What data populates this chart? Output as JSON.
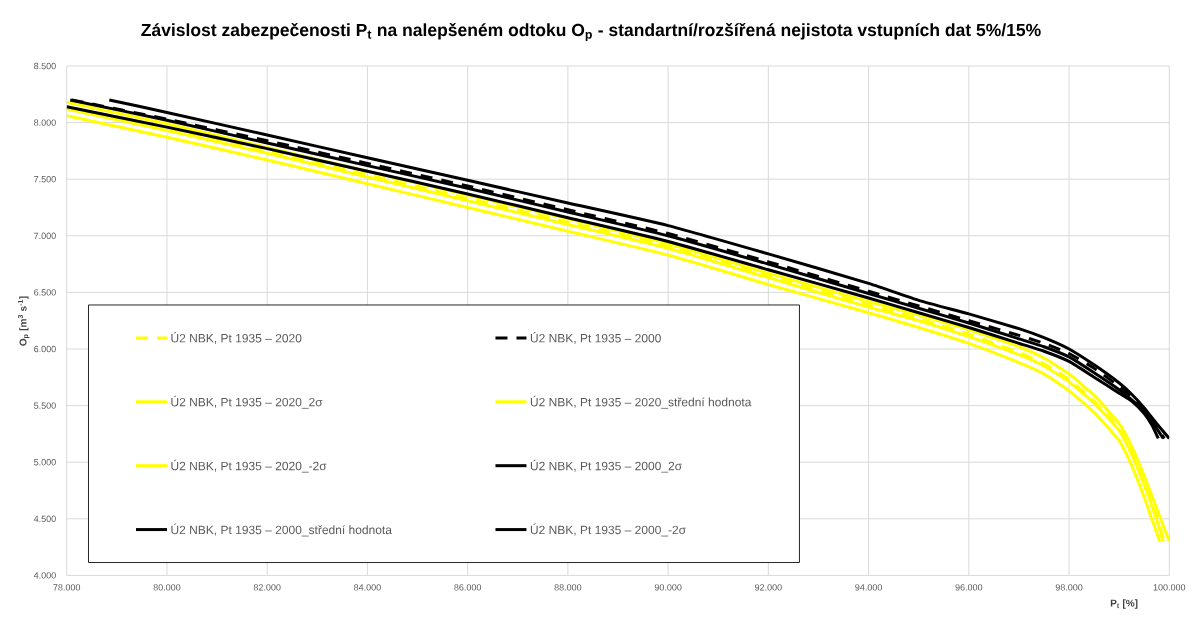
{
  "chart_data": {
    "type": "line",
    "title": "Závislost zabezpečenosti P$_{t}$ na nalepšeném odtoku O$_{p}$  - standartní/rozšířená nejistota vstupních dat 5%/15%",
    "xlabel": "P$_{t}$ [%]",
    "ylabel": "O$_{p}$ [m$^{3}$ s$^{-1}$]",
    "xlim": [
      78,
      100
    ],
    "ylim": [
      4,
      8.5
    ],
    "xticks": [
      {
        "value": 78,
        "label": "78.000"
      },
      {
        "value": 80,
        "label": "80.000"
      },
      {
        "value": 82,
        "label": "82.000"
      },
      {
        "value": 84,
        "label": "84.000"
      },
      {
        "value": 86,
        "label": "86.000"
      },
      {
        "value": 88,
        "label": "88.000"
      },
      {
        "value": 90,
        "label": "90.000"
      },
      {
        "value": 92,
        "label": "92.000"
      },
      {
        "value": 94,
        "label": "94.000"
      },
      {
        "value": 96,
        "label": "96.000"
      },
      {
        "value": 98,
        "label": "98.000"
      },
      {
        "value": 100,
        "label": "100.000"
      }
    ],
    "yticks": [
      {
        "value": 4,
        "label": "4.000"
      },
      {
        "value": 4.5,
        "label": "4.500"
      },
      {
        "value": 5,
        "label": "5.000"
      },
      {
        "value": 5.5,
        "label": "5.500"
      },
      {
        "value": 6,
        "label": "6.000"
      },
      {
        "value": 6.5,
        "label": "6.500"
      },
      {
        "value": 7,
        "label": "7.000"
      },
      {
        "value": 7.5,
        "label": "7.500"
      },
      {
        "value": 8,
        "label": "8.000"
      },
      {
        "value": 8.5,
        "label": "8.500"
      }
    ],
    "grid": true,
    "legend": "bottom left",
    "series": [
      {
        "name": "Ú2 NBK, Pt 1935 – 2020",
        "color": "#ffff00",
        "line_style": "dashed",
        "x": [
          78,
          80,
          82,
          84,
          86,
          88,
          90,
          92,
          94,
          95,
          96,
          97,
          97.5,
          98,
          98.5,
          99,
          99.25,
          99.5,
          99.75,
          99.9
        ],
        "values": [
          8.14,
          7.95,
          7.75,
          7.54,
          7.33,
          7.12,
          6.91,
          6.65,
          6.39,
          6.27,
          6.13,
          5.97,
          5.87,
          5.73,
          5.54,
          5.3,
          5.09,
          4.82,
          4.51,
          4.3
        ]
      },
      {
        "name": "Ú2 NBK, Pt 1935 – 2000",
        "color": "#000000",
        "line_style": "dashed",
        "x": [
          78.1,
          80,
          82,
          84,
          86,
          88,
          90,
          92,
          94,
          95,
          96,
          97,
          97.5,
          98,
          98.5,
          99,
          99.25,
          99.5,
          99.7,
          99.9
        ],
        "values": [
          8.2,
          8.03,
          7.84,
          7.64,
          7.44,
          7.23,
          7.02,
          6.77,
          6.51,
          6.38,
          6.25,
          6.12,
          6.05,
          5.96,
          5.83,
          5.67,
          5.58,
          5.47,
          5.35,
          5.21
        ]
      },
      {
        "name": "Ú2 NBK, Pt 1935 – 2020_2σ",
        "color": "#ffff00",
        "line_style": "solid",
        "x": [
          78,
          80,
          82,
          84,
          86,
          88,
          90,
          92,
          94,
          95,
          96,
          97,
          97.5,
          98,
          98.5,
          99,
          99.25,
          99.5,
          99.75,
          100
        ],
        "values": [
          8.18,
          7.99,
          7.78,
          7.57,
          7.36,
          7.15,
          6.93,
          6.67,
          6.42,
          6.3,
          6.17,
          6.02,
          5.92,
          5.78,
          5.59,
          5.34,
          5.14,
          4.88,
          4.59,
          4.3
        ]
      },
      {
        "name": "Ú2 NBK, Pt 1935 – 2020_střední hodnota",
        "color": "#ffff00",
        "line_style": "solid",
        "x": [
          78,
          80,
          82,
          84,
          86,
          88,
          90,
          92,
          94,
          95,
          96,
          97,
          97.5,
          98,
          98.5,
          99,
          99.25,
          99.5,
          99.75,
          99.88
        ],
        "values": [
          8.12,
          7.93,
          7.73,
          7.52,
          7.31,
          7.1,
          6.89,
          6.63,
          6.37,
          6.25,
          6.11,
          5.95,
          5.85,
          5.71,
          5.52,
          5.28,
          5.07,
          4.8,
          4.49,
          4.3
        ]
      },
      {
        "name": "Ú2 NBK, Pt 1935 – 2020_-2σ",
        "color": "#ffff00",
        "line_style": "solid",
        "x": [
          78,
          80,
          82,
          84,
          86,
          88,
          90,
          92,
          94,
          95,
          96,
          97,
          97.5,
          98,
          98.5,
          99,
          99.25,
          99.5,
          99.65,
          99.81
        ],
        "values": [
          8.06,
          7.87,
          7.67,
          7.46,
          7.25,
          7.04,
          6.83,
          6.57,
          6.32,
          6.19,
          6.05,
          5.88,
          5.78,
          5.63,
          5.44,
          5.19,
          4.97,
          4.69,
          4.5,
          4.3
        ]
      },
      {
        "name": "Ú2 NBK, Pt 1935 – 2000_2σ",
        "color": "#000000",
        "line_style": "solid",
        "x": [
          78.85,
          80,
          82,
          84,
          86,
          88,
          90,
          92,
          94,
          95,
          96,
          97,
          97.5,
          98,
          98.5,
          99,
          99.25,
          99.5,
          99.75,
          100
        ],
        "values": [
          8.2,
          8.09,
          7.89,
          7.69,
          7.49,
          7.29,
          7.09,
          6.84,
          6.58,
          6.43,
          6.31,
          6.18,
          6.1,
          6.0,
          5.86,
          5.7,
          5.6,
          5.48,
          5.34,
          5.21
        ]
      },
      {
        "name": "Ú2 NBK, Pt 1935 – 2000_střední hodnota",
        "color": "#000000",
        "line_style": "solid",
        "x": [
          78.07,
          80,
          82,
          84,
          86,
          88,
          90,
          92,
          94,
          95,
          96,
          97,
          97.5,
          98,
          98.5,
          99,
          99.25,
          99.5,
          99.7,
          99.88
        ],
        "values": [
          8.2,
          8.02,
          7.82,
          7.62,
          7.42,
          7.21,
          7.0,
          6.75,
          6.49,
          6.36,
          6.23,
          6.09,
          6.02,
          5.93,
          5.79,
          5.64,
          5.55,
          5.45,
          5.33,
          5.21
        ]
      },
      {
        "name": "Ú2 NBK, Pt 1935 – 2000_-2σ",
        "color": "#000000",
        "line_style": "solid",
        "x": [
          78,
          80,
          82,
          84,
          86,
          88,
          90,
          92,
          94,
          95,
          96,
          97,
          97.5,
          98,
          98.5,
          99,
          99.25,
          99.5,
          99.65,
          99.78
        ],
        "values": [
          8.14,
          7.96,
          7.77,
          7.57,
          7.37,
          7.16,
          6.95,
          6.7,
          6.45,
          6.32,
          6.19,
          6.05,
          5.98,
          5.89,
          5.75,
          5.61,
          5.54,
          5.43,
          5.33,
          5.21
        ]
      }
    ]
  }
}
